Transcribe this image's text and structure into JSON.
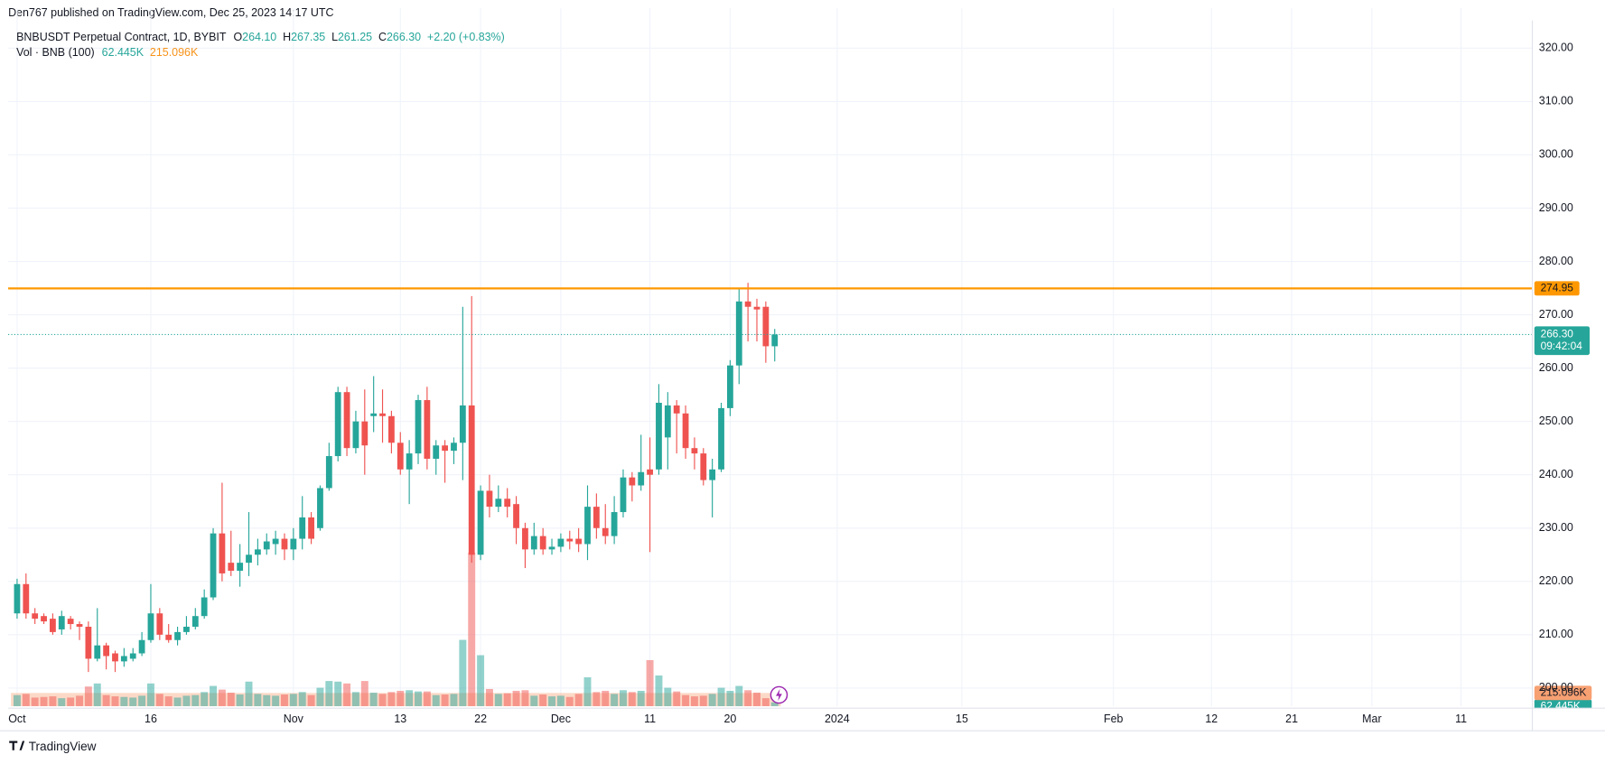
{
  "header": {
    "published": "Den767 published on TradingView.com, Dec 25, 2023 14:17 UTC",
    "brand": "TradingView"
  },
  "chart_data": {
    "type": "candlestick",
    "title": "BNBUSDT Perpetual Contract, 1D, BYBIT",
    "readings": [
      {
        "label": "O",
        "value": "264.10"
      },
      {
        "label": "H",
        "value": "267.35"
      },
      {
        "label": "L",
        "value": "261.25"
      },
      {
        "label": "C",
        "value": "266.30"
      },
      {
        "value": "+2.20 (+0.83%)"
      }
    ],
    "volume_title": "Vol · BNB (100)",
    "volume_last": {
      "value": 62445,
      "label": "62.445K"
    },
    "volume_ma": {
      "value": 215096,
      "label": "215.096K"
    },
    "up_color": "#26a69a",
    "down_color": "#ef5350",
    "ma_color": "#f7a072",
    "x": [
      "2023-10-01",
      "2023-10-02",
      "2023-10-03",
      "2023-10-04",
      "2023-10-05",
      "2023-10-06",
      "2023-10-07",
      "2023-10-08",
      "2023-10-09",
      "2023-10-10",
      "2023-10-11",
      "2023-10-12",
      "2023-10-13",
      "2023-10-14",
      "2023-10-15",
      "2023-10-16",
      "2023-10-17",
      "2023-10-18",
      "2023-10-19",
      "2023-10-20",
      "2023-10-21",
      "2023-10-22",
      "2023-10-23",
      "2023-10-24",
      "2023-10-25",
      "2023-10-26",
      "2023-10-27",
      "2023-10-28",
      "2023-10-29",
      "2023-10-30",
      "2023-10-31",
      "2023-11-01",
      "2023-11-02",
      "2023-11-03",
      "2023-11-04",
      "2023-11-05",
      "2023-11-06",
      "2023-11-07",
      "2023-11-08",
      "2023-11-09",
      "2023-11-10",
      "2023-11-11",
      "2023-11-12",
      "2023-11-13",
      "2023-11-14",
      "2023-11-15",
      "2023-11-16",
      "2023-11-17",
      "2023-11-18",
      "2023-11-19",
      "2023-11-20",
      "2023-11-21",
      "2023-11-22",
      "2023-11-23",
      "2023-11-24",
      "2023-11-25",
      "2023-11-26",
      "2023-11-27",
      "2023-11-28",
      "2023-11-29",
      "2023-11-30",
      "2023-12-01",
      "2023-12-02",
      "2023-12-03",
      "2023-12-04",
      "2023-12-05",
      "2023-12-06",
      "2023-12-07",
      "2023-12-08",
      "2023-12-09",
      "2023-12-10",
      "2023-12-11",
      "2023-12-12",
      "2023-12-13",
      "2023-12-14",
      "2023-12-15",
      "2023-12-16",
      "2023-12-17",
      "2023-12-18",
      "2023-12-19",
      "2023-12-20",
      "2023-12-21",
      "2023-12-22",
      "2023-12-23",
      "2023-12-24",
      "2023-12-25"
    ],
    "open": [
      214,
      219.5,
      214,
      213.5,
      213,
      211,
      213,
      212,
      211.5,
      205.5,
      208,
      206.5,
      205,
      205.5,
      206.5,
      209,
      214,
      210,
      209,
      210.5,
      211.5,
      213.5,
      217,
      229,
      223.5,
      222,
      223.5,
      225,
      226,
      227,
      228,
      226,
      228,
      232,
      230,
      237.5,
      243.5,
      255.5,
      245,
      250,
      251,
      251.5,
      251,
      246,
      241,
      244,
      254,
      243,
      245.5,
      244.5,
      246,
      253,
      225,
      237,
      234,
      235.5,
      234.5,
      230,
      226,
      228.5,
      226,
      226.5,
      228,
      228,
      227,
      234,
      230,
      228.5,
      233,
      239.5,
      238,
      241,
      241,
      247,
      253,
      251.5,
      245,
      244,
      239,
      241,
      252.5,
      260.5,
      272.5,
      271.5,
      271.5,
      264.1
    ],
    "high": [
      220.5,
      221.5,
      215,
      214,
      214,
      214.5,
      213.5,
      212.5,
      212.5,
      215,
      208.5,
      207,
      207.5,
      207.5,
      210.5,
      219.5,
      215,
      212,
      211.5,
      213.5,
      215,
      218.5,
      230,
      238.5,
      229.5,
      227,
      233,
      228,
      229,
      229.5,
      229,
      230,
      236,
      233,
      238,
      246,
      256.5,
      256.5,
      252,
      256,
      258.5,
      256,
      252,
      248,
      246.5,
      255,
      256.5,
      246.5,
      246.5,
      247,
      271.5,
      273.5,
      238,
      240,
      238,
      237.5,
      236,
      231,
      231,
      230,
      228,
      229,
      229.5,
      230,
      238,
      236.5,
      234.5,
      236,
      241,
      240.5,
      247.5,
      247,
      257,
      255.5,
      254,
      253,
      247,
      245,
      243,
      253.5,
      261.5,
      275,
      276,
      273,
      272.5,
      267.35
    ],
    "low": [
      213,
      213,
      212,
      212,
      210,
      210,
      211,
      209,
      203,
      205,
      203.5,
      203,
      204,
      205,
      206,
      208.5,
      209,
      208.5,
      208,
      210,
      211,
      213,
      216.5,
      220,
      221,
      219,
      221,
      223,
      225,
      225,
      224,
      224,
      226,
      227,
      229.5,
      237,
      242.5,
      243.5,
      244,
      240,
      248,
      246,
      244,
      240,
      234.5,
      242,
      241,
      240,
      238.5,
      242,
      239,
      223.5,
      224,
      232,
      233,
      232,
      227,
      222.5,
      225,
      225,
      225,
      225.5,
      226,
      225.5,
      224,
      228,
      227,
      227,
      232,
      235,
      237,
      225.5,
      240,
      241,
      244,
      243,
      241,
      238,
      232,
      240.5,
      251,
      257,
      265,
      265,
      261,
      261.25
    ],
    "close": [
      219.5,
      214,
      213,
      212.5,
      210.5,
      213.5,
      212,
      211.5,
      205.5,
      208,
      206,
      205,
      206,
      206.5,
      209,
      214,
      210,
      209,
      210.5,
      211.5,
      213.5,
      217,
      229,
      221.5,
      222,
      223.5,
      225,
      226,
      227.5,
      228,
      226,
      228,
      232,
      228,
      237.5,
      243.5,
      255.5,
      245,
      250,
      245.5,
      251.5,
      251,
      246,
      241,
      244,
      254,
      243,
      245.5,
      244.5,
      246,
      253,
      225,
      237,
      234,
      235.5,
      234,
      230,
      226,
      228.5,
      226,
      226.5,
      228,
      227.5,
      227,
      234,
      230,
      228.5,
      233,
      239.5,
      238,
      240.5,
      240,
      253.5,
      253,
      251.5,
      245,
      244,
      239,
      241,
      252.5,
      260.5,
      272.5,
      271.5,
      271,
      264.1,
      266.3
    ],
    "volume": [
      180000,
      200000,
      140000,
      150000,
      160000,
      130000,
      140000,
      170000,
      320000,
      370000,
      180000,
      160000,
      150000,
      140000,
      170000,
      370000,
      200000,
      160000,
      140000,
      170000,
      180000,
      230000,
      330000,
      270000,
      220000,
      190000,
      400000,
      200000,
      180000,
      170000,
      190000,
      200000,
      230000,
      180000,
      300000,
      410000,
      400000,
      370000,
      230000,
      410000,
      220000,
      200000,
      230000,
      250000,
      260000,
      240000,
      240000,
      180000,
      190000,
      200000,
      1080000,
      2500000,
      830000,
      280000,
      200000,
      210000,
      250000,
      260000,
      170000,
      190000,
      160000,
      170000,
      150000,
      200000,
      470000,
      230000,
      250000,
      200000,
      260000,
      230000,
      250000,
      750000,
      500000,
      300000,
      240000,
      180000,
      160000,
      170000,
      200000,
      300000,
      250000,
      330000,
      260000,
      220000,
      130000,
      62445
    ],
    "volume_ylim": [
      0,
      3000000
    ],
    "xlim": [
      "2023-09-30",
      "2024-03-19"
    ],
    "xticks": [
      {
        "value": "2023-10-01",
        "label": "Oct"
      },
      {
        "value": "2023-10-16",
        "label": "16"
      },
      {
        "value": "2023-11-01",
        "label": "Nov"
      },
      {
        "value": "2023-11-13",
        "label": "13"
      },
      {
        "value": "2023-11-22",
        "label": "22"
      },
      {
        "value": "2023-12-01",
        "label": "Dec"
      },
      {
        "value": "2023-12-11",
        "label": "11"
      },
      {
        "value": "2023-12-20",
        "label": "20"
      },
      {
        "value": "2024-01-01",
        "label": "2024"
      },
      {
        "value": "2024-01-15",
        "label": "15"
      },
      {
        "value": "2024-02-01",
        "label": "Feb"
      },
      {
        "value": "2024-02-12",
        "label": "12"
      },
      {
        "value": "2024-02-21",
        "label": "21"
      },
      {
        "value": "2024-03-01",
        "label": "Mar"
      },
      {
        "value": "2024-03-11",
        "label": "11"
      }
    ],
    "ylim": [
      196.6,
      327.5
    ],
    "yticks": [
      {
        "value": 200,
        "label": "200.00"
      },
      {
        "value": 210,
        "label": "210.00"
      },
      {
        "value": 220,
        "label": "220.00"
      },
      {
        "value": 230,
        "label": "230.00"
      },
      {
        "value": 240,
        "label": "240.00"
      },
      {
        "value": 250,
        "label": "250.00"
      },
      {
        "value": 260,
        "label": "260.00"
      },
      {
        "value": 270,
        "label": "270.00"
      },
      {
        "value": 280,
        "label": "280.00"
      },
      {
        "value": 290,
        "label": "290.00"
      },
      {
        "value": 300,
        "label": "300.00"
      },
      {
        "value": 310,
        "label": "310.00"
      },
      {
        "value": 320,
        "label": "320.00"
      }
    ],
    "grid": true,
    "level": {
      "value": 274.95,
      "label": "274.95",
      "color": "#ff9800"
    },
    "last_price": {
      "value": 266.3,
      "label": "266.30",
      "countdown": "09:42:04"
    }
  }
}
